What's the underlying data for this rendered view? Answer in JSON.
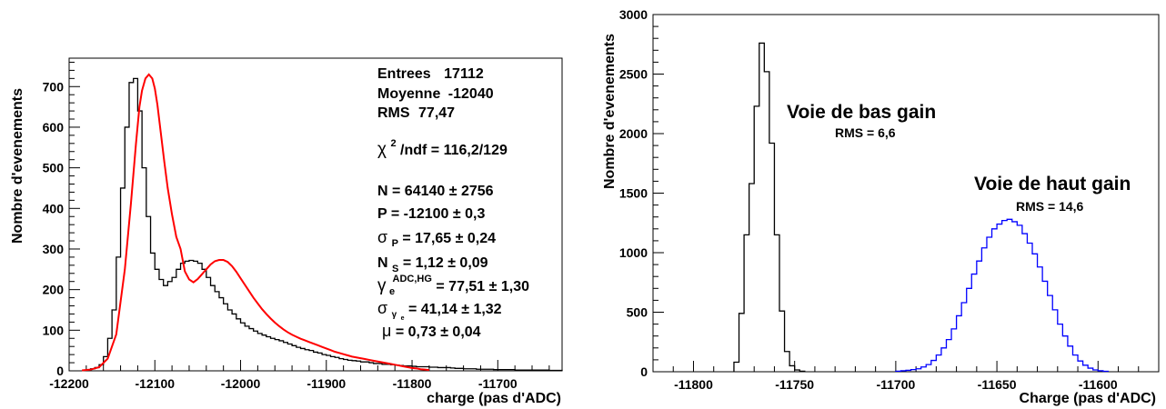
{
  "chart_data": [
    {
      "type": "histogram",
      "xlabel": "charge (pas d'ADC)",
      "ylabel": "Nombre d'evenements",
      "xlim": [
        -12200,
        -11625
      ],
      "ylim": [
        0,
        770
      ],
      "x_ticks": [
        -12200,
        -12100,
        -12000,
        -11900,
        -11800,
        -11700
      ],
      "x_tick_labels": [
        "-12200",
        "-12100",
        "-12000",
        "-11900",
        "-11800",
        "-11700"
      ],
      "y_ticks": [
        0,
        100,
        200,
        300,
        400,
        500,
        600,
        700
      ],
      "y_tick_labels": [
        "0",
        "100",
        "200",
        "300",
        "400",
        "500",
        "600",
        "700"
      ],
      "grid": false,
      "stats_box": {
        "entries_label": "Entrees",
        "entries_value": "17112",
        "mean_label": "Moyenne",
        "mean_value": "-12040",
        "rms_label": "RMS",
        "rms_value": "77,47",
        "chi2_symbol": "χ",
        "chi2_sup": "2",
        "chi2_text": "/ndf = 116,2/129",
        "n_text": "N = 64140 ± 2756",
        "p_text": "P = -12100 ± 0,3",
        "sigma_symbol": "σ",
        "sigma_sub": "P",
        "sigma_text": " = 17,65 ± 0,24",
        "ns_letter": "N",
        "ns_sub": "S",
        "ns_text": " = 1,12 ± 0,09",
        "gamma_symbol": "γ",
        "gamma_sub": "e",
        "gamma_sup": "ADC,HG",
        "gamma_text": " = 77,51 ± 1,30",
        "sg_symbol": "σ",
        "sg_sub": "γ",
        "sg_subsub": "e",
        "sg_text": " = 41,14 ± 1,32",
        "mu_symbol": "μ",
        "mu_text": " = 0,73 ± 0,04"
      },
      "series": [
        {
          "kind": "histogram",
          "color": "#000000",
          "bin_width": 5,
          "bin_starts": [
            -12180,
            -12175,
            -12170,
            -12165,
            -12160,
            -12155,
            -12150,
            -12145,
            -12140,
            -12135,
            -12130,
            -12125,
            -12120,
            -12115,
            -12110,
            -12105,
            -12100,
            -12095,
            -12090,
            -12085,
            -12080,
            -12075,
            -12070,
            -12065,
            -12060,
            -12055,
            -12050,
            -12045,
            -12040,
            -12035,
            -12030,
            -12025,
            -12020,
            -12015,
            -12010,
            -12005,
            -12000,
            -11995,
            -11990,
            -11985,
            -11980,
            -11975,
            -11970,
            -11965,
            -11960,
            -11955,
            -11950,
            -11945,
            -11940,
            -11935,
            -11930,
            -11925,
            -11920,
            -11915,
            -11910,
            -11905,
            -11900,
            -11895,
            -11890,
            -11885,
            -11880,
            -11875,
            -11870,
            -11865,
            -11860,
            -11855,
            -11850,
            -11845,
            -11840,
            -11835,
            -11830,
            -11825,
            -11820,
            -11815,
            -11810,
            -11805,
            -11800,
            -11795,
            -11790,
            -11785,
            -11780,
            -11775,
            -11770,
            -11765,
            -11760,
            -11755,
            -11750,
            -11745,
            -11740,
            -11735,
            -11730,
            -11725,
            -11720,
            -11715,
            -11710,
            -11705,
            -11700,
            -11695,
            -11690,
            -11685,
            -11680,
            -11675,
            -11670,
            -11665,
            -11660,
            -11655,
            -11650,
            -11645,
            -11640,
            -11635,
            -11630
          ],
          "counts": [
            2,
            5,
            8,
            15,
            35,
            80,
            150,
            280,
            450,
            600,
            710,
            720,
            640,
            500,
            380,
            290,
            250,
            225,
            210,
            220,
            230,
            250,
            265,
            270,
            272,
            270,
            265,
            250,
            230,
            210,
            195,
            180,
            165,
            150,
            140,
            128,
            118,
            110,
            104,
            98,
            92,
            88,
            84,
            80,
            77,
            74,
            70,
            66,
            62,
            58,
            55,
            52,
            50,
            46,
            44,
            40,
            38,
            35,
            33,
            30,
            28,
            26,
            25,
            24,
            22,
            22,
            20,
            18,
            18,
            16,
            16,
            15,
            14,
            13,
            12,
            12,
            11,
            10,
            10,
            10,
            9,
            9,
            8,
            8,
            8,
            7,
            6,
            6,
            5,
            5,
            5,
            4,
            4,
            4,
            4,
            3,
            3,
            3,
            3,
            3,
            2,
            2,
            2,
            2,
            2,
            2,
            2,
            2,
            1,
            1,
            1
          ]
        },
        {
          "kind": "fit-curve",
          "color": "#ff0000",
          "x": [
            -12185,
            -12175,
            -12165,
            -12155,
            -12145,
            -12135,
            -12128,
            -12122,
            -12118,
            -12115,
            -12111,
            -12107,
            -12103,
            -12100,
            -12097,
            -12093,
            -12089,
            -12085,
            -12080,
            -12075,
            -12070,
            -12065,
            -12060,
            -12055,
            -12050,
            -12045,
            -12040,
            -12035,
            -12030,
            -12025,
            -12020,
            -12015,
            -12010,
            -12005,
            -12000,
            -11995,
            -11990,
            -11985,
            -11980,
            -11975,
            -11970,
            -11965,
            -11960,
            -11955,
            -11950,
            -11945,
            -11940,
            -11935,
            -11930,
            -11925,
            -11920,
            -11915,
            -11910,
            -11905,
            -11900,
            -11895,
            -11890,
            -11885,
            -11880,
            -11875,
            -11870,
            -11865,
            -11860,
            -11855,
            -11850,
            -11845,
            -11840,
            -11835,
            -11830,
            -11825,
            -11820,
            -11815,
            -11810,
            -11805,
            -11800,
            -11795,
            -11790,
            -11785,
            -11780
          ],
          "y": [
            1,
            3,
            9,
            30,
            90,
            250,
            410,
            560,
            650,
            690,
            720,
            730,
            720,
            695,
            655,
            585,
            515,
            450,
            385,
            330,
            300,
            245,
            225,
            218,
            226,
            238,
            250,
            262,
            270,
            273,
            273,
            268,
            258,
            244,
            228,
            212,
            196,
            180,
            166,
            152,
            140,
            129,
            119,
            110,
            102,
            95,
            89,
            84,
            79,
            75,
            71,
            67,
            63,
            59,
            55,
            51,
            47,
            44,
            41,
            38,
            35,
            33,
            31,
            29,
            27,
            25,
            23,
            21,
            19,
            17,
            15,
            13,
            11,
            9,
            7,
            6,
            4,
            3,
            2
          ]
        }
      ]
    },
    {
      "type": "histogram",
      "xlabel": "Charge (pas d'ADC)",
      "ylabel": "Nombre d'evenements",
      "xlim": [
        -11820,
        -11570
      ],
      "ylim": [
        0,
        3000
      ],
      "x_ticks": [
        -11800,
        -11750,
        -11700,
        -11650,
        -11600
      ],
      "x_tick_labels": [
        "-11800",
        "-11750",
        "-11700",
        "-11650",
        "-11600"
      ],
      "y_ticks": [
        0,
        500,
        1000,
        1500,
        2000,
        2500,
        3000
      ],
      "y_tick_labels": [
        "0",
        "500",
        "1000",
        "1500",
        "2000",
        "2500",
        "3000"
      ],
      "grid": false,
      "annotations": [
        {
          "title": "Voie de bas gain",
          "rms": "RMS = 6,6"
        },
        {
          "title": "Voie de haut gain",
          "rms": "RMS = 14,6"
        }
      ],
      "series": [
        {
          "name": "Voie de bas gain",
          "kind": "histogram",
          "color": "#000000",
          "bin_width": 2.5,
          "bin_starts": [
            -11780,
            -11777.5,
            -11775,
            -11772.5,
            -11770,
            -11767.5,
            -11765,
            -11762.5,
            -11760,
            -11757.5,
            -11755,
            -11752.5,
            -11750,
            -11747.5
          ],
          "counts": [
            80,
            490,
            1150,
            1580,
            2230,
            2760,
            2520,
            1920,
            1150,
            510,
            170,
            50,
            15,
            5
          ]
        },
        {
          "name": "Voie de haut gain",
          "kind": "histogram",
          "color": "#0000ff",
          "bin_width": 2.5,
          "bin_starts": [
            -11700,
            -11697.5,
            -11695,
            -11692.5,
            -11690,
            -11687.5,
            -11685,
            -11682.5,
            -11680,
            -11677.5,
            -11675,
            -11672.5,
            -11670,
            -11667.5,
            -11665,
            -11662.5,
            -11660,
            -11657.5,
            -11655,
            -11652.5,
            -11650,
            -11647.5,
            -11645,
            -11642.5,
            -11640,
            -11637.5,
            -11635,
            -11632.5,
            -11630,
            -11627.5,
            -11625,
            -11622.5,
            -11620,
            -11617.5,
            -11615,
            -11612.5,
            -11610,
            -11607.5,
            -11605,
            -11602.5,
            -11600,
            -11597.5
          ],
          "counts": [
            5,
            8,
            12,
            18,
            25,
            40,
            60,
            95,
            140,
            200,
            270,
            360,
            470,
            580,
            700,
            820,
            930,
            1040,
            1130,
            1200,
            1240,
            1270,
            1280,
            1260,
            1230,
            1160,
            1080,
            990,
            880,
            760,
            640,
            520,
            400,
            300,
            215,
            140,
            90,
            55,
            30,
            15,
            8,
            4
          ]
        }
      ]
    }
  ]
}
